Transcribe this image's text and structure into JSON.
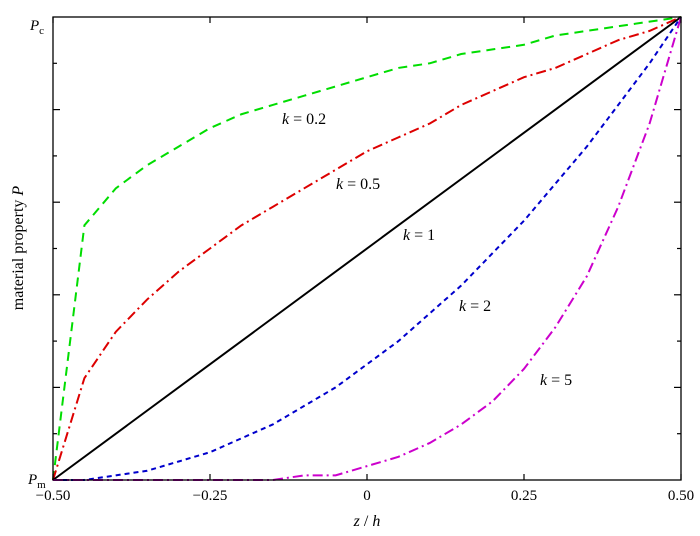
{
  "chart_data": {
    "type": "line",
    "xlabel_var": "z",
    "xlabel_sep": " / ",
    "xlabel_den": "h",
    "ylabel_text": "material property ",
    "ylabel_var": "P",
    "xlim": [
      -0.5,
      0.5
    ],
    "ylim": [
      0,
      1
    ],
    "x_ticks": [
      -0.5,
      -0.25,
      0,
      0.25,
      0.5
    ],
    "x_tick_labels": [
      "−0.50",
      "−0.25",
      "0",
      "0.25",
      "0.50"
    ],
    "y_tick_labels": {
      "bottom": {
        "var": "P",
        "sub": "m"
      },
      "top": {
        "var": "P",
        "sub": "c"
      }
    },
    "grid": false,
    "legend": "none",
    "series": [
      {
        "k": 0.2,
        "label_var": "k",
        "label_val": " = 0.2",
        "color": "#00dd00",
        "dash": "9,6",
        "x": [
          -0.5,
          -0.45,
          -0.4,
          -0.35,
          -0.3,
          -0.25,
          -0.2,
          -0.15,
          -0.1,
          -0.05,
          0,
          0.05,
          0.1,
          0.15,
          0.2,
          0.25,
          0.3,
          0.35,
          0.4,
          0.45,
          0.5
        ],
        "y": [
          0,
          0.55,
          0.63,
          0.68,
          0.72,
          0.76,
          0.79,
          0.81,
          0.83,
          0.85,
          0.87,
          0.89,
          0.9,
          0.92,
          0.93,
          0.94,
          0.96,
          0.97,
          0.98,
          0.99,
          1
        ]
      },
      {
        "k": 0.5,
        "label_var": "k",
        "label_val": " = 0.5",
        "color": "#dd0000",
        "dash": "10,4,2,4",
        "x": [
          -0.5,
          -0.45,
          -0.4,
          -0.35,
          -0.3,
          -0.25,
          -0.2,
          -0.15,
          -0.1,
          -0.05,
          0,
          0.05,
          0.1,
          0.15,
          0.2,
          0.25,
          0.3,
          0.35,
          0.4,
          0.45,
          0.5
        ],
        "y": [
          0,
          0.22,
          0.32,
          0.39,
          0.45,
          0.5,
          0.55,
          0.59,
          0.63,
          0.67,
          0.71,
          0.74,
          0.77,
          0.81,
          0.84,
          0.87,
          0.89,
          0.92,
          0.95,
          0.97,
          1
        ]
      },
      {
        "k": 1,
        "label_var": "k",
        "label_val": " = 1",
        "color": "#000000",
        "dash": "",
        "x": [
          -0.5,
          0.5
        ],
        "y": [
          0,
          1
        ]
      },
      {
        "k": 2,
        "label_var": "k",
        "label_val": " = 2",
        "color": "#0000cc",
        "dash": "5,4",
        "x": [
          -0.5,
          -0.45,
          -0.4,
          -0.35,
          -0.3,
          -0.25,
          -0.2,
          -0.15,
          -0.1,
          -0.05,
          0,
          0.05,
          0.1,
          0.15,
          0.2,
          0.25,
          0.3,
          0.35,
          0.4,
          0.45,
          0.5
        ],
        "y": [
          0,
          0,
          0.01,
          0.02,
          0.04,
          0.06,
          0.09,
          0.12,
          0.16,
          0.2,
          0.25,
          0.3,
          0.36,
          0.42,
          0.49,
          0.56,
          0.64,
          0.72,
          0.81,
          0.9,
          1
        ]
      },
      {
        "k": 5,
        "label_var": "k",
        "label_val": " = 5",
        "color": "#cc00cc",
        "dash": "10,4,2,4",
        "x": [
          -0.5,
          -0.45,
          -0.4,
          -0.35,
          -0.3,
          -0.25,
          -0.2,
          -0.15,
          -0.1,
          -0.05,
          0,
          0.05,
          0.1,
          0.15,
          0.2,
          0.25,
          0.3,
          0.35,
          0.4,
          0.45,
          0.5
        ],
        "y": [
          0,
          0,
          0,
          0,
          0,
          0,
          0,
          0,
          0.01,
          0.01,
          0.03,
          0.05,
          0.08,
          0.12,
          0.17,
          0.24,
          0.33,
          0.44,
          0.59,
          0.77,
          1
        ]
      }
    ]
  }
}
